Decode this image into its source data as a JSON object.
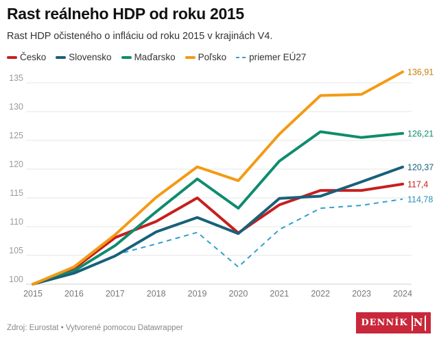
{
  "title": "Rast reálneho HDP od roku 2015",
  "subtitle": "Rast HDP očisteného o infláciu od roku 2015 v krajinách V4.",
  "source": "Zdroj: Eurostat • Vytvorené pomocou Datawrapper",
  "logo": {
    "text": "DENNÍK",
    "mark": "N",
    "color": "#c8283a"
  },
  "chart_data": {
    "type": "line",
    "title": "Rast reálneho HDP od roku 2015",
    "xlabel": "",
    "ylabel": "",
    "x": [
      "2015",
      "2016",
      "2017",
      "2018",
      "2019",
      "2020",
      "2021",
      "2022",
      "2023",
      "2024"
    ],
    "yticks": [
      100,
      105,
      110,
      115,
      120,
      125,
      130,
      135
    ],
    "ylim": [
      100,
      137
    ],
    "grid": true,
    "legend_position": "top-left",
    "series": [
      {
        "name": "Česko",
        "color": "#c71e1d",
        "dashed": false,
        "values": [
          100,
          102.7,
          108.1,
          110.9,
          115.0,
          108.9,
          113.8,
          116.3,
          116.3,
          117.4
        ],
        "end_label": "117,4"
      },
      {
        "name": "Slovensko",
        "color": "#18607a",
        "dashed": false,
        "values": [
          100,
          101.9,
          104.9,
          109.1,
          111.6,
          108.8,
          114.9,
          115.3,
          117.8,
          120.37
        ],
        "end_label": "120,37"
      },
      {
        "name": "Maďarsko",
        "color": "#0f8c6d",
        "dashed": false,
        "values": [
          100,
          102.3,
          106.7,
          112.6,
          118.3,
          113.2,
          121.4,
          126.5,
          125.5,
          126.21
        ],
        "end_label": "126,21"
      },
      {
        "name": "Poľsko",
        "color": "#f39a14",
        "dashed": false,
        "values": [
          100,
          103.0,
          108.6,
          115.1,
          120.4,
          118.0,
          126.1,
          132.8,
          133.0,
          136.91
        ],
        "end_label": "136,91"
      },
      {
        "name": "priemer EÚ27",
        "color": "#2fa0cf",
        "dashed": true,
        "values": [
          null,
          null,
          105.1,
          107.0,
          109.0,
          103.0,
          109.5,
          113.2,
          113.7,
          114.78
        ],
        "end_label": "114,78"
      }
    ]
  }
}
